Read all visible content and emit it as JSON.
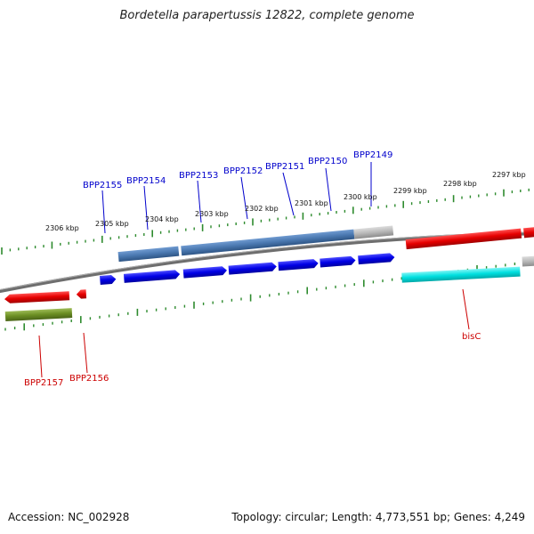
{
  "title": "Bordetella parapertussis 12822, complete genome",
  "footer": {
    "accession": "Accession: NC_002928",
    "summary": "Topology: circular; Length: 4,773,551 bp; Genes: 4,249"
  },
  "colors": {
    "backbone": "#808080",
    "ticks": "#2e8b2e",
    "gene_forward": "#0000e6",
    "gene_reverse": "#e60000",
    "cds_blue": "#4a78b0",
    "cds_grey": "#b8b8b8",
    "cds_cyan": "#00e0e0",
    "cds_olive": "#6b8e23",
    "label_blue": "#0000cc",
    "label_red": "#cc0000"
  },
  "kbp_labels": [
    "2306 kbp",
    "2305 kbp",
    "2304 kbp",
    "2303 kbp",
    "2302 kbp",
    "2301 kbp",
    "2300 kbp",
    "2299 kbp",
    "2298 kbp",
    "2297 kbp"
  ],
  "gene_labels": {
    "BPP2155": "BPP2155",
    "BPP2154": "BPP2154",
    "BPP2153": "BPP2153",
    "BPP2152": "BPP2152",
    "BPP2151": "BPP2151",
    "BPP2150": "BPP2150",
    "BPP2149": "BPP2149",
    "BPP2157": "BPP2157",
    "BPP2156": "BPP2156",
    "bisC": "bisC"
  }
}
